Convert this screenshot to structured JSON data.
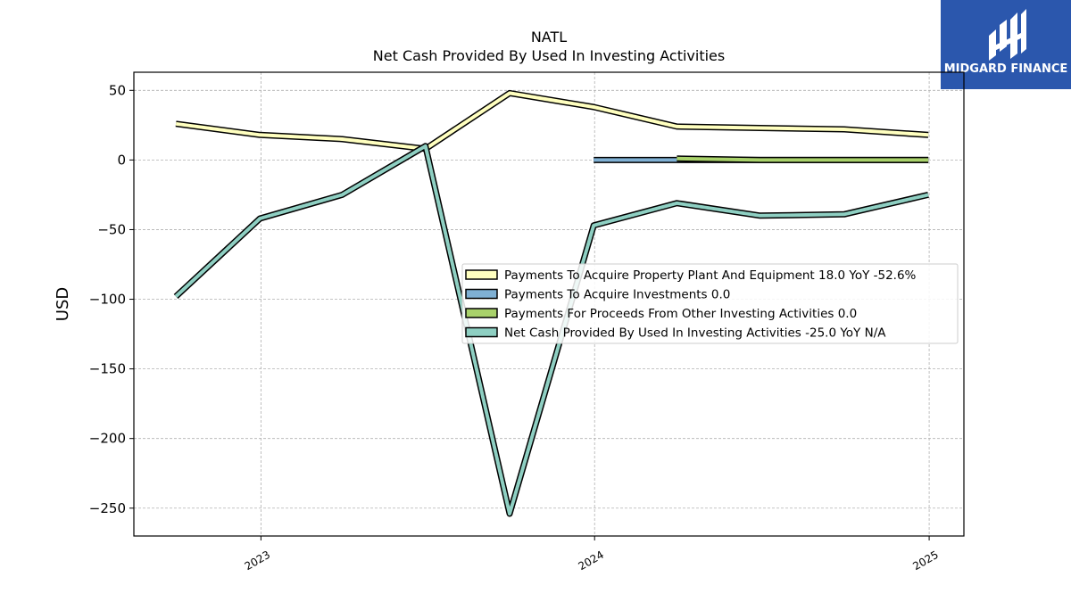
{
  "brand": {
    "name": "MIDGARD FINANCE",
    "color": "#2b57ad"
  },
  "chart_data": {
    "type": "line",
    "title": "NATL",
    "subtitle": "Net Cash Provided By Used In Investing Activities",
    "xlabel": "",
    "ylabel": "USD",
    "xlim": [
      "2022-08-15",
      "2025-02-08"
    ],
    "ylim": [
      -270,
      63
    ],
    "x_ticks": [
      "2023",
      "2024",
      "2025"
    ],
    "y_ticks": [
      50,
      0,
      -50,
      -100,
      -150,
      -200,
      -250
    ],
    "grid": true,
    "legend_position": "center-right",
    "series": [
      {
        "name": "Payments To Acquire Property Plant And Equipment",
        "legend_label": "Payments To Acquire Property Plant And Equipment  18.0 YoY -52.6%",
        "color": "#ffffbf",
        "x": [
          "2022-09-30",
          "2022-12-31",
          "2023-03-31",
          "2023-06-30",
          "2023-09-30",
          "2023-12-31",
          "2024-03-31",
          "2024-06-30",
          "2024-09-30",
          "2024-12-31"
        ],
        "y": [
          26,
          18,
          15,
          8,
          48,
          38,
          24,
          23,
          22,
          18
        ]
      },
      {
        "name": "Payments To Acquire Investments",
        "legend_label": "Payments To Acquire Investments  0.0",
        "color": "#7fb0d4",
        "x": [
          "2023-12-31",
          "2024-03-31",
          "2024-06-30",
          "2024-09-30",
          "2024-12-31"
        ],
        "y": [
          0,
          0,
          0,
          0,
          0
        ]
      },
      {
        "name": "Payments For Proceeds From Other Investing Activities",
        "legend_label": "Payments For Proceeds From Other Investing Activities  0.0",
        "color": "#a9d26b",
        "x": [
          "2024-03-31",
          "2024-06-30",
          "2024-09-30",
          "2024-12-31"
        ],
        "y": [
          1,
          0,
          0,
          0
        ]
      },
      {
        "name": "Net Cash Provided By Used In Investing Activities",
        "legend_label": "Net Cash Provided By Used In Investing Activities  -25.0 YoY N/A",
        "color": "#8ecfc2",
        "x": [
          "2022-09-30",
          "2022-12-31",
          "2023-03-31",
          "2023-06-30",
          "2023-09-30",
          "2023-12-31",
          "2024-03-31",
          "2024-06-30",
          "2024-09-30",
          "2024-12-31"
        ],
        "y": [
          -98,
          -42,
          -25,
          10,
          -254,
          -47,
          -31,
          -40,
          -39,
          -25
        ]
      }
    ]
  }
}
